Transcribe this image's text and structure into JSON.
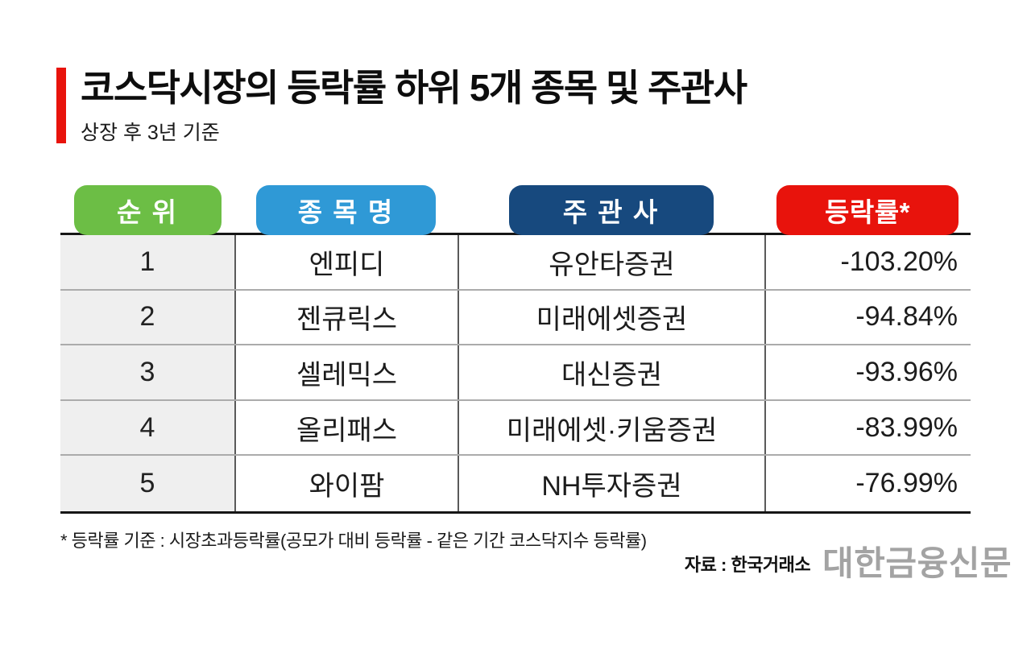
{
  "header": {
    "title": "코스닥시장의 등락률 하위 5개 종목 및 주관사",
    "subtitle": "상장 후 3년 기준"
  },
  "table": {
    "columns": [
      {
        "label": "순 위",
        "color": "#6cbe45"
      },
      {
        "label": "종 목 명",
        "color": "#2f99d6"
      },
      {
        "label": "주 관 사",
        "color": "#17497e"
      },
      {
        "label": "등락률*",
        "color": "#e8130c"
      }
    ],
    "rows": [
      {
        "rank": "1",
        "stock": "엔피디",
        "underwriter": "유안타증권",
        "change": "-103.20%"
      },
      {
        "rank": "2",
        "stock": "젠큐릭스",
        "underwriter": "미래에셋증권",
        "change": "-94.84%"
      },
      {
        "rank": "3",
        "stock": "셀레믹스",
        "underwriter": "대신증권",
        "change": "-93.96%"
      },
      {
        "rank": "4",
        "stock": "올리패스",
        "underwriter": "미래에셋·키움증권",
        "change": "-83.99%"
      },
      {
        "rank": "5",
        "stock": "와이팜",
        "underwriter": "NH투자증권",
        "change": "-76.99%"
      }
    ]
  },
  "footnote": "* 등락률 기준 : 시장초과등락률(공모가 대비 등락률 - 같은 기간 코스닥지수 등락률)",
  "source": "자료 : 한국거래소",
  "logo": "대한금융신문",
  "colors": {
    "accent_red": "#e8130c",
    "badge_green": "#6cbe45",
    "badge_blue": "#2f99d6",
    "badge_navy": "#17497e",
    "badge_red": "#e8130c",
    "rank_cell_bg": "#efefef",
    "logo_gray": "#a3a3a3"
  },
  "chart_data": {
    "type": "table",
    "title": "코스닥시장의 등락률 하위 5개 종목 및 주관사",
    "subtitle": "상장 후 3년 기준",
    "columns": [
      "순위",
      "종목명",
      "주관사",
      "등락률*"
    ],
    "rows": [
      [
        1,
        "엔피디",
        "유안타증권",
        -103.2
      ],
      [
        2,
        "젠큐릭스",
        "미래에셋증권",
        -94.84
      ],
      [
        3,
        "셀레믹스",
        "대신증권",
        -93.96
      ],
      [
        4,
        "올리패스",
        "미래에셋·키움증권",
        -83.99
      ],
      [
        5,
        "와이팜",
        "NH투자증권",
        -76.99
      ]
    ],
    "value_unit": "%",
    "footnote": "* 등락률 기준 : 시장초과등락률(공모가 대비 등락률 - 같은 기간 코스닥지수 등락률)",
    "source": "자료 : 한국거래소"
  }
}
